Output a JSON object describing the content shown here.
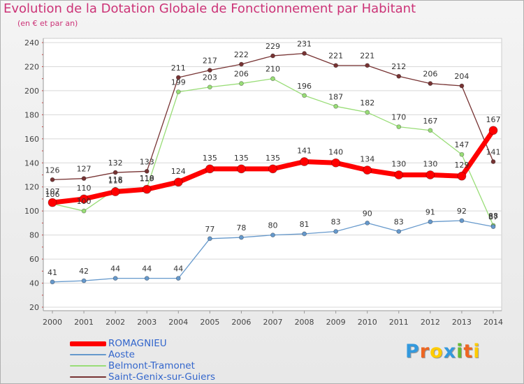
{
  "page": {
    "title": "Evolution de la Dotation Globale de Fonctionnement par Habitant",
    "subtitle": "(en € et par an)"
  },
  "chart_data": {
    "type": "line",
    "title": "Evolution de la Dotation Globale de Fonctionnement par Habitant",
    "subtitle": "(en € et par an)",
    "x": [
      "2000",
      "2001",
      "2002",
      "2003",
      "2004",
      "2005",
      "2006",
      "2007",
      "2008",
      "2009",
      "2010",
      "2011",
      "2012",
      "2013",
      "2014"
    ],
    "ylim": [
      20,
      240
    ],
    "yticks": [
      20,
      40,
      60,
      80,
      100,
      120,
      140,
      160,
      180,
      200,
      220,
      240
    ],
    "grid": "horizontal",
    "legend_position": "bottom-left",
    "series": [
      {
        "name": "ROMAGNIEU",
        "color": "#ff0000",
        "values": [
          107,
          110,
          116,
          118,
          124,
          135,
          135,
          135,
          141,
          140,
          134,
          130,
          130,
          129,
          167
        ]
      },
      {
        "name": "Aoste",
        "color": "#6699cc",
        "values": [
          41,
          42,
          44,
          44,
          44,
          77,
          78,
          80,
          81,
          83,
          90,
          83,
          91,
          92,
          87
        ]
      },
      {
        "name": "Belmont-Tramonet",
        "color": "#99dd77",
        "values": [
          106,
          100,
          118,
          119,
          199,
          203,
          206,
          210,
          196,
          187,
          182,
          170,
          167,
          147,
          88
        ]
      },
      {
        "name": "Saint-Genix-sur-Guiers",
        "color": "#773333",
        "values": [
          126,
          127,
          132,
          133,
          211,
          217,
          222,
          229,
          231,
          221,
          221,
          212,
          206,
          204,
          141
        ]
      }
    ]
  },
  "legend": {
    "items": [
      {
        "label": "ROMAGNIEU",
        "color": "#ff0000"
      },
      {
        "label": "Aoste",
        "color": "#6699cc"
      },
      {
        "label": "Belmont-Tramonet",
        "color": "#99dd77"
      },
      {
        "label": "Saint-Genix-sur-Guiers",
        "color": "#773333"
      }
    ]
  },
  "logo": {
    "letters": [
      "P",
      "r",
      "o",
      "x",
      "i",
      "t",
      "i"
    ],
    "colors": [
      "#3399dd",
      "#ee6622",
      "#ffcc00",
      "#3399dd",
      "#66bb33",
      "#ee6622",
      "#ffcc00"
    ]
  }
}
